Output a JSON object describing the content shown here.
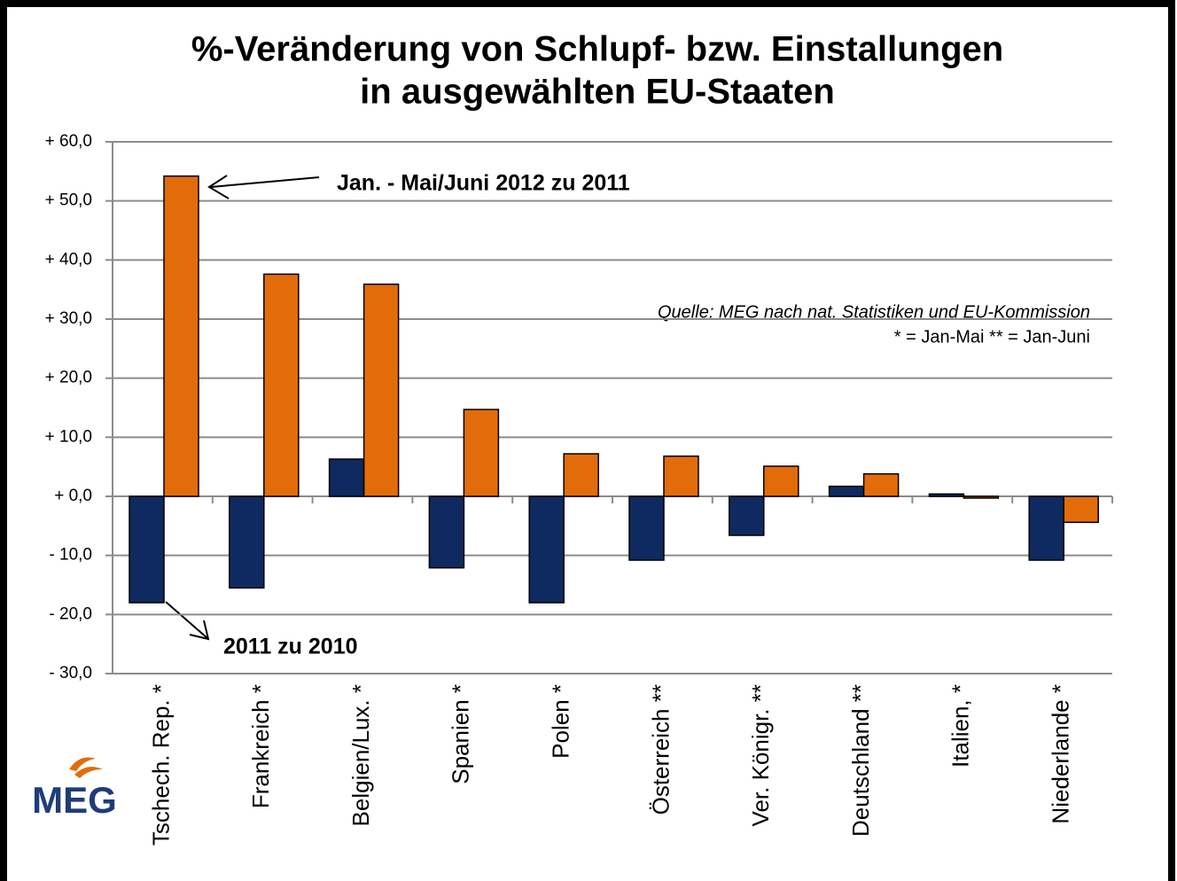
{
  "chart_data": {
    "type": "bar",
    "title": "%-Veränderung von Schlupf- bzw. Einstallungen",
    "subtitle": "in ausgewählten EU-Staaten",
    "categories": [
      "Tschech. Rep. *",
      "Frankreich *",
      "Belgien/Lux. *",
      "Spanien *",
      "Polen *",
      "Österreich **",
      "Ver. Königr. **",
      "Deutschland **",
      "Italien, *",
      "Niederlande *"
    ],
    "series": [
      {
        "name": "2011 zu 2010",
        "color": "#0f2a60",
        "values": [
          -18,
          -15.5,
          6.3,
          -12.1,
          -18,
          -10.8,
          -6.6,
          1.7,
          0.4,
          -10.8
        ]
      },
      {
        "name": "Jan. - Mai/Juni 2012 zu 2011",
        "color": "#e36c0a",
        "values": [
          54.2,
          37.6,
          35.9,
          14.7,
          7.2,
          6.8,
          5.1,
          3.8,
          -0.3,
          -4.4
        ]
      }
    ],
    "ylim": [
      -30,
      60
    ],
    "yticks": [
      {
        "value": -30,
        "label": "- 30,0"
      },
      {
        "value": -20,
        "label": "- 20,0"
      },
      {
        "value": -10,
        "label": "- 10,0"
      },
      {
        "value": 0,
        "label": "+ 0,0"
      },
      {
        "value": 10,
        "label": "+ 10,0"
      },
      {
        "value": 20,
        "label": "+ 20,0"
      },
      {
        "value": 30,
        "label": "+ 30,0"
      },
      {
        "value": 40,
        "label": "+ 40,0"
      },
      {
        "value": 50,
        "label": "+ 50,0"
      },
      {
        "value": 60,
        "label": "+ 60,0"
      }
    ],
    "grid": true,
    "source_note": [
      "Quelle: MEG  nach nat. Statistiken und EU-Kommission",
      "*  =  Jan-Mai ** = Jan-Juni"
    ],
    "logo": "MEG"
  }
}
